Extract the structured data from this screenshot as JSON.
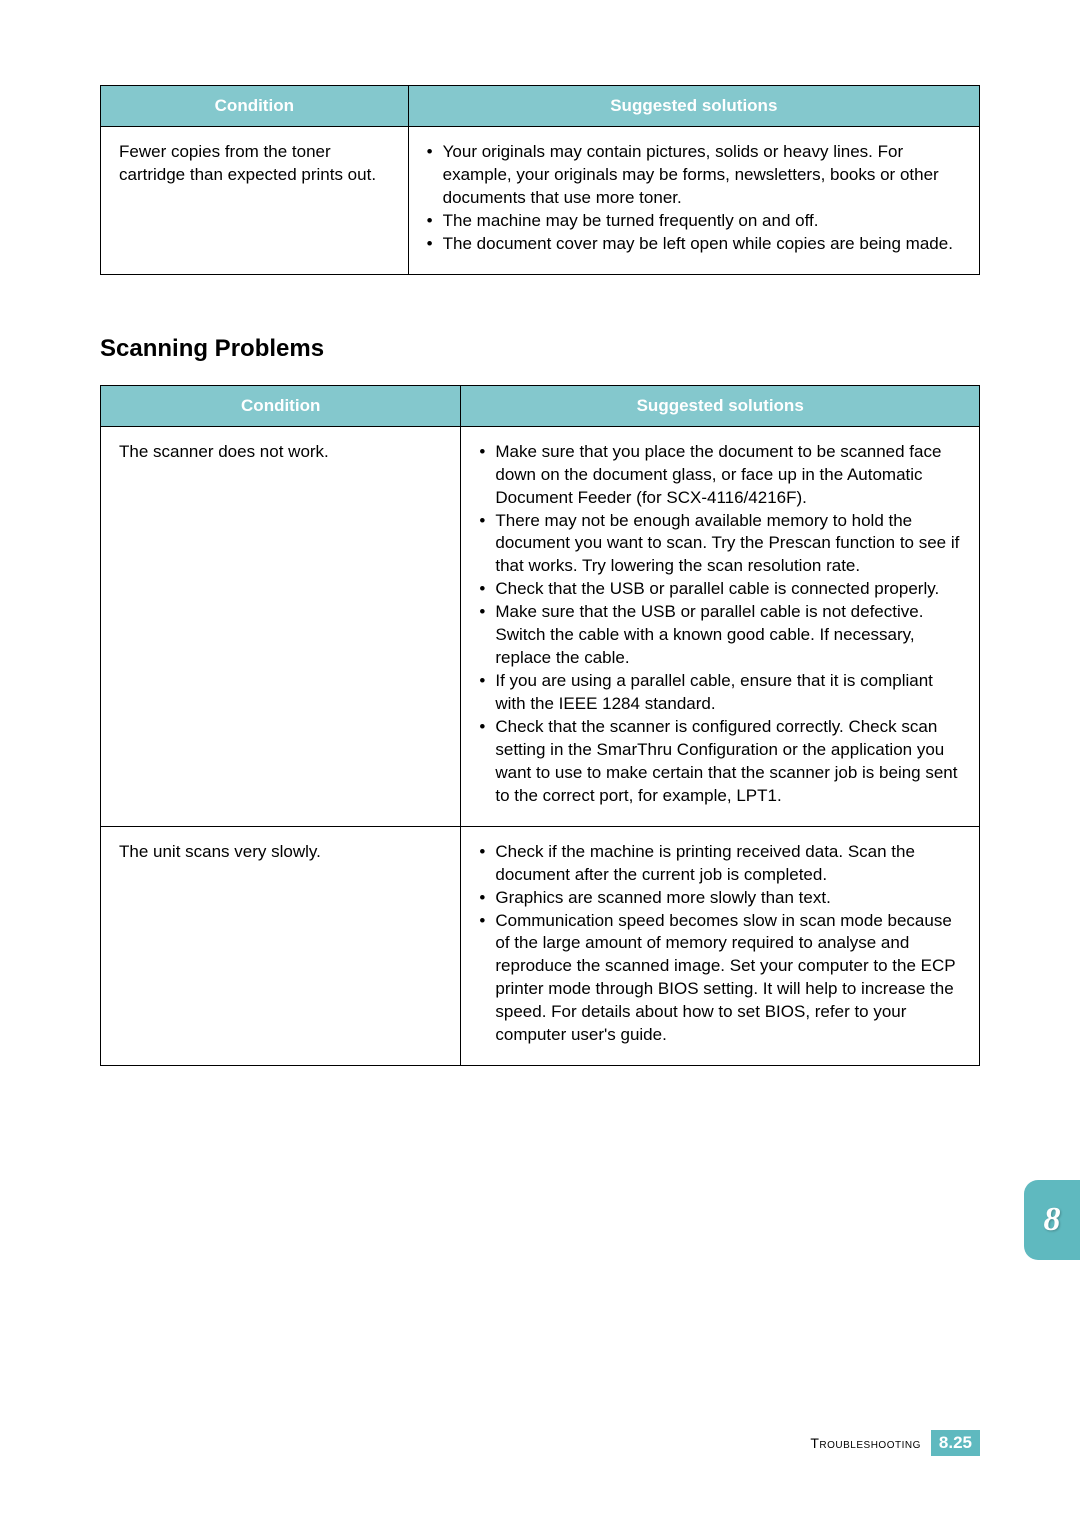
{
  "colors": {
    "header_bg": "#84c8cd",
    "header_text": "#ffffff",
    "border": "#000000",
    "body_text": "#000000",
    "tab_bg": "#5fb9bf",
    "tab_text": "#ffffff",
    "page_bg": "#ffffff"
  },
  "table1": {
    "headers": {
      "col1": "Condition",
      "col2": "Suggested solutions"
    },
    "row1": {
      "condition": "Fewer copies from the toner cartridge than expected prints out.",
      "solutions": [
        "Your originals may contain pictures, solids or heavy lines. For example, your originals may be forms, newsletters, books or other documents that use more toner.",
        "The machine may be turned frequently on and off.",
        "The document cover may be left open while copies are being made."
      ]
    }
  },
  "section_title": "Scanning Problems",
  "table2": {
    "headers": {
      "col1": "Condition",
      "col2": "Suggested solutions"
    },
    "row1": {
      "condition": "The scanner does not work.",
      "solutions": [
        "Make sure that you place the document to be scanned face down on the document glass, or face up in the Automatic Document Feeder (for SCX-4116/4216F).",
        "There may not be enough available memory to hold the document you want to scan. Try the Prescan function to see if that works. Try lowering the scan resolution rate.",
        "Check that the USB or parallel cable is connected properly.",
        "Make sure that the USB or parallel cable is not defective. Switch the cable with a known good cable. If necessary, replace the cable.",
        "If you are using a parallel cable, ensure that it is compliant with the IEEE 1284 standard.",
        "Check that the scanner is configured correctly. Check scan setting in the SmarThru Configuration or the application you want to use to make certain that the scanner job is being sent to the correct port, for example, LPT1."
      ]
    },
    "row2": {
      "condition": "The unit scans very slowly.",
      "solutions": [
        "Check if the machine is printing received data. Scan the document after the current job is completed.",
        "Graphics are scanned more slowly than text.",
        "Communication speed becomes slow in scan mode because of the large amount of memory required to analyse and reproduce the scanned image. Set your computer to the ECP printer mode through BIOS setting. It will help to increase the speed. For details about how to set BIOS, refer to your computer user's guide."
      ]
    }
  },
  "chapter_tab": "8",
  "footer": {
    "label": "Troubleshooting",
    "chapter": "8",
    "page": "25"
  }
}
